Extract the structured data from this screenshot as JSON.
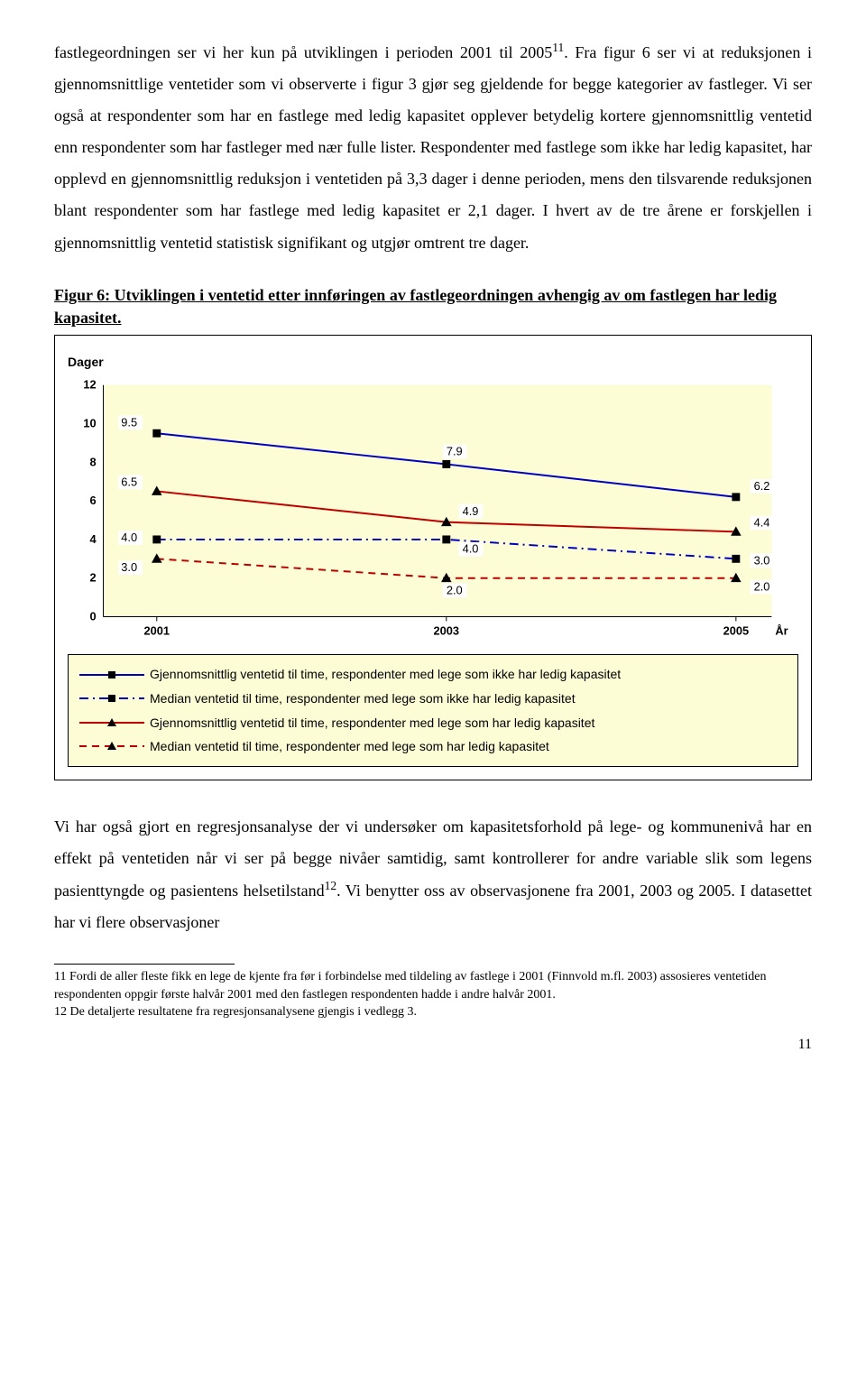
{
  "body_text": {
    "p1": "fastlegeordningen ser vi her kun på utviklingen i perioden 2001 til 2005",
    "p1_sup": "11",
    "p1_cont": ". Fra figur 6 ser vi at reduksjonen i gjennomsnittlige ventetider som vi observerte i figur 3 gjør seg gjeldende for begge kategorier av fastleger. Vi ser også at respondenter som har en fastlege med ledig kapasitet opplever betydelig kortere gjennomsnittlig ventetid enn respondenter som har fastleger med nær fulle lister. Respondenter med fastlege som ikke har ledig kapasitet, har opplevd en gjennomsnittlig reduksjon i ventetiden på 3,3 dager i denne perioden, mens den tilsvarende reduksjonen blant respondenter som har fastlege med ledig kapasitet er 2,1 dager. I hvert av de tre årene er forskjellen i gjennomsnittlig ventetid statistisk signifikant og utgjør omtrent tre dager.",
    "p2": "Vi har også gjort en regresjonsanalyse der vi undersøker om kapasitetsforhold på lege- og kommunenivå har en effekt på ventetiden når vi ser på begge nivåer samtidig, samt kontrollerer for andre variable slik som legens pasienttyngde og pasientens helsetilstand",
    "p2_sup": "12",
    "p2_cont": ". Vi benytter oss av observasjonene fra 2001, 2003 og 2005. I datasettet har vi flere observasjoner"
  },
  "figure": {
    "title": "Figur 6: Utviklingen i ventetid etter innføringen av fastlegeordningen avhengig av om fastlegen har ledig kapasitet.",
    "y_axis_label": "Dager",
    "x_axis_label": "År",
    "ylim": [
      0,
      12
    ],
    "ytick_step": 2,
    "yticks": [
      "0",
      "2",
      "4",
      "6",
      "8",
      "10",
      "12"
    ],
    "x_categories": [
      "2001",
      "2003",
      "2005"
    ],
    "background_color": "#fdfdd5",
    "series": [
      {
        "key": "mean_no_cap",
        "label": "Gjennomsnittlig ventetid til time, respondenter med lege som ikke har ledig kapasitet",
        "color": "#0000c0",
        "marker": "square",
        "dash": "solid",
        "values": [
          9.5,
          7.9,
          6.2
        ],
        "value_labels": [
          "9.5",
          "7.9",
          "6.2"
        ]
      },
      {
        "key": "median_no_cap",
        "label": "Median ventetid til time, respondenter med lege som ikke har ledig kapasitet",
        "color": "#0000c0",
        "marker": "square",
        "dash": "dashdot",
        "values": [
          4.0,
          4.0,
          3.0
        ],
        "value_labels": [
          "4.0",
          "4.0",
          "3.0"
        ]
      },
      {
        "key": "mean_cap",
        "label": "Gjennomsnittlig ventetid til time, respondenter med lege som har ledig kapasitet",
        "color": "#c00000",
        "marker": "triangle",
        "dash": "solid",
        "values": [
          6.5,
          4.9,
          4.4
        ],
        "value_labels": [
          "6.5",
          "4.9",
          "4.4"
        ]
      },
      {
        "key": "median_cap",
        "label": "Median ventetid til time, respondenter med lege som har ledig kapasitet",
        "color": "#c00000",
        "marker": "triangle",
        "dash": "dash",
        "values": [
          3.0,
          2.0,
          2.0
        ],
        "value_labels": [
          "3.0",
          "2.0",
          "2.0"
        ]
      }
    ]
  },
  "footnotes": {
    "fn11": "11 Fordi de aller fleste fikk en lege de kjente fra før i forbindelse med tildeling av fastlege i 2001 (Finnvold m.fl. 2003) assosieres ventetiden respondenten oppgir første halvår 2001 med den fastlegen respondenten hadde i andre halvår 2001.",
    "fn12": "12 De detaljerte resultatene fra regresjonsanalysene gjengis i vedlegg 3."
  },
  "page_number": "11"
}
